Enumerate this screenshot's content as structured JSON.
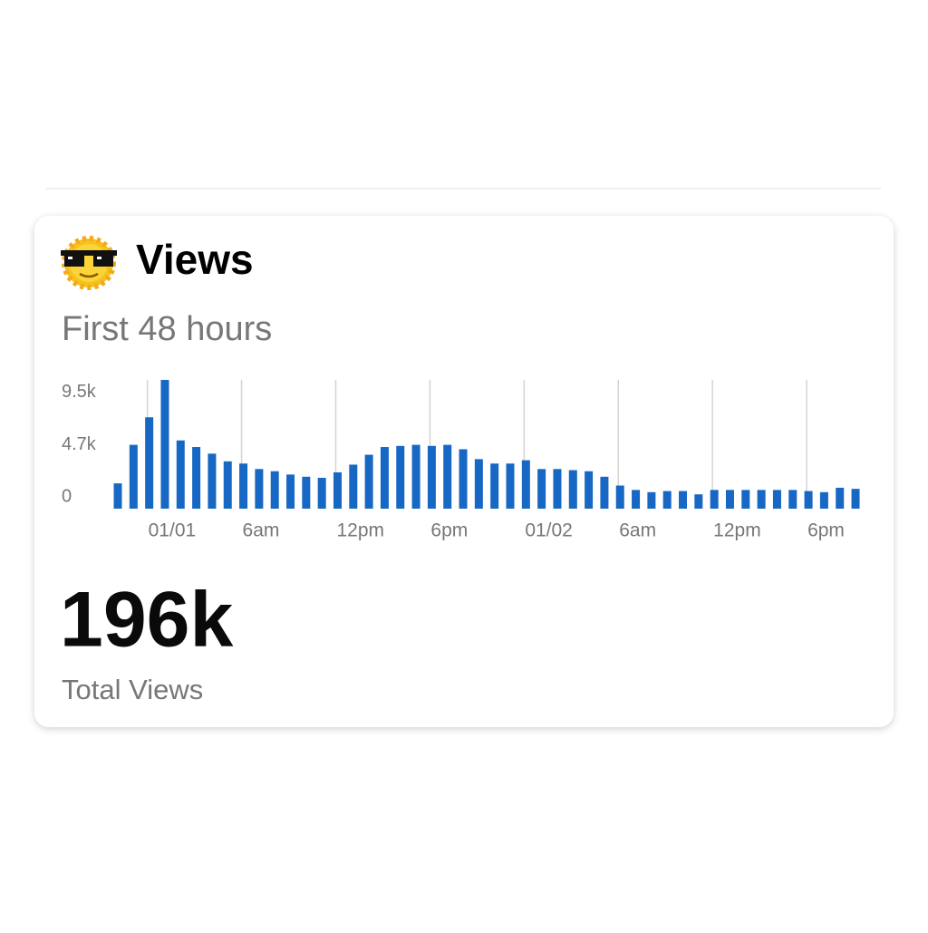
{
  "chart_data": {
    "type": "bar",
    "title": "Views",
    "subtitle": "First 48 hours",
    "categories": [
      null,
      null,
      "01/01",
      null,
      null,
      null,
      null,
      null,
      "6am",
      null,
      null,
      null,
      null,
      null,
      "12pm",
      null,
      null,
      null,
      null,
      null,
      "6pm",
      null,
      null,
      null,
      null,
      null,
      "01/02",
      null,
      null,
      null,
      null,
      null,
      "6am",
      null,
      null,
      null,
      null,
      null,
      "12pm",
      null,
      null,
      null,
      null,
      null,
      "6pm",
      null,
      null,
      null
    ],
    "values": [
      2300,
      5800,
      8300,
      11700,
      6200,
      5600,
      5000,
      4300,
      4100,
      3600,
      3400,
      3100,
      2900,
      2800,
      3300,
      4000,
      4900,
      5600,
      5700,
      5800,
      5700,
      5800,
      5400,
      4500,
      4100,
      4100,
      4400,
      3600,
      3600,
      3500,
      3400,
      2900,
      2100,
      1700,
      1500,
      1600,
      1600,
      1300,
      1700,
      1700,
      1700,
      1700,
      1700,
      1700,
      1600,
      1500,
      1900,
      1800
    ],
    "color": "#1767c4",
    "ylim": [
      0,
      11700
    ],
    "yticks": [
      0,
      {
        "value": 4700,
        "label": "4.7k"
      },
      {
        "value": 9500,
        "label": "9.5k"
      }
    ],
    "grid": true
  },
  "summary": {
    "value": "196k",
    "label": "Total Views"
  }
}
